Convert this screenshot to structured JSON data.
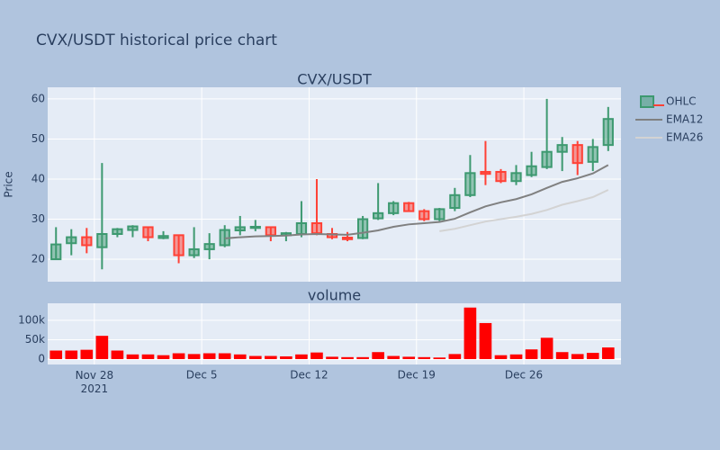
{
  "title": "CVX/USDT historical price chart",
  "chart_data": [
    {
      "type": "candlestick",
      "subtitle": "CVX/USDT",
      "ylabel": "Price",
      "x": [
        "2021-11-25",
        "2021-11-26",
        "2021-11-27",
        "2021-11-28",
        "2021-11-29",
        "2021-11-30",
        "2021-12-01",
        "2021-12-02",
        "2021-12-03",
        "2021-12-04",
        "2021-12-05",
        "2021-12-06",
        "2021-12-07",
        "2021-12-08",
        "2021-12-09",
        "2021-12-10",
        "2021-12-11",
        "2021-12-12",
        "2021-12-13",
        "2021-12-14",
        "2021-12-15",
        "2021-12-16",
        "2021-12-17",
        "2021-12-18",
        "2021-12-19",
        "2021-12-20",
        "2021-12-21",
        "2021-12-22",
        "2021-12-23",
        "2021-12-24",
        "2021-12-25",
        "2021-12-26",
        "2021-12-27",
        "2021-12-28",
        "2021-12-29",
        "2021-12-30",
        "2021-12-31"
      ],
      "series": [
        {
          "name": "OHLC",
          "type": "candlestick",
          "increasing_color": "#3d9970",
          "decreasing_color": "#ff4136",
          "open": [
            20,
            24,
            25.5,
            23,
            26.3,
            27.3,
            28,
            25.3,
            26,
            21,
            22.5,
            23.5,
            27.2,
            27.8,
            28,
            26,
            26.3,
            29,
            26.3,
            25.4,
            25.3,
            30.2,
            31.5,
            34,
            32,
            30,
            32.8,
            36,
            41.8,
            41.8,
            39.5,
            41,
            43,
            46.8,
            48.5,
            44.3,
            48.5
          ],
          "high": [
            28,
            27.5,
            27.8,
            44,
            27.8,
            28.5,
            28.2,
            27,
            26,
            28,
            26.5,
            28.5,
            30.8,
            29.8,
            28.2,
            26.8,
            34.5,
            40,
            27.8,
            26.8,
            30.8,
            39,
            34.5,
            34.3,
            32.5,
            32.8,
            37.8,
            46,
            49.5,
            42.5,
            43.5,
            46.8,
            60,
            50.5,
            49.5,
            50,
            58
          ],
          "low": [
            20,
            21,
            21.5,
            17.5,
            25.5,
            25.5,
            24.5,
            25,
            19,
            20.3,
            20,
            23,
            26,
            27,
            24.5,
            24.5,
            25.5,
            26,
            25,
            24.5,
            25,
            29.8,
            31,
            31.8,
            29.5,
            29.5,
            32,
            35.5,
            38.5,
            39,
            38.5,
            40.5,
            42.5,
            42,
            41,
            42,
            47
          ],
          "close": [
            23.7,
            25.5,
            23.5,
            26.3,
            27.5,
            28.2,
            25.5,
            25.8,
            21,
            22.5,
            23.8,
            27.3,
            28,
            28.1,
            26,
            26.5,
            29,
            26.5,
            25.5,
            25,
            30,
            31.5,
            34,
            32,
            30,
            32.5,
            36,
            41.5,
            41.3,
            39.5,
            41.5,
            43.2,
            46.8,
            48.5,
            44,
            48,
            55
          ]
        },
        {
          "name": "EMA12",
          "type": "line",
          "color": "#808080",
          "values": [
            null,
            null,
            null,
            null,
            null,
            null,
            null,
            null,
            null,
            null,
            null,
            25.2,
            25.5,
            25.7,
            25.8,
            25.9,
            26.2,
            26.3,
            26.2,
            26.1,
            26.6,
            27.2,
            28.1,
            28.7,
            29.0,
            29.3,
            30.1,
            31.7,
            33.2,
            34.2,
            35.0,
            36.2,
            37.8,
            39.3,
            40.2,
            41.4,
            43.5
          ]
        },
        {
          "name": "EMA26",
          "type": "line",
          "color": "#d3d3d3",
          "values": [
            null,
            null,
            null,
            null,
            null,
            null,
            null,
            null,
            null,
            null,
            null,
            null,
            null,
            null,
            null,
            null,
            null,
            null,
            null,
            null,
            null,
            null,
            null,
            null,
            null,
            27.0,
            27.6,
            28.5,
            29.4,
            30.0,
            30.6,
            31.3,
            32.3,
            33.6,
            34.5,
            35.5,
            37.3
          ]
        }
      ],
      "xlim": [
        "2021-11-24T23:00:00Z",
        "2022-01-01T08:00:00Z"
      ],
      "xticks": [
        "2021-11-28",
        "2021-12-05",
        "2021-12-12",
        "2021-12-19",
        "2021-12-26"
      ],
      "ylim": [
        14.4,
        62.9
      ],
      "yticks": [
        20,
        30,
        40,
        50,
        60
      ],
      "grid": true,
      "legend": "right"
    },
    {
      "type": "bar",
      "subtitle": "volume",
      "color": "#ff0000",
      "x": [
        "2021-11-25",
        "2021-11-26",
        "2021-11-27",
        "2021-11-28",
        "2021-11-29",
        "2021-11-30",
        "2021-12-01",
        "2021-12-02",
        "2021-12-03",
        "2021-12-04",
        "2021-12-05",
        "2021-12-06",
        "2021-12-07",
        "2021-12-08",
        "2021-12-09",
        "2021-12-10",
        "2021-12-11",
        "2021-12-12",
        "2021-12-13",
        "2021-12-14",
        "2021-12-15",
        "2021-12-16",
        "2021-12-17",
        "2021-12-18",
        "2021-12-19",
        "2021-12-20",
        "2021-12-21",
        "2021-12-22",
        "2021-12-23",
        "2021-12-24",
        "2021-12-25",
        "2021-12-26",
        "2021-12-27",
        "2021-12-28",
        "2021-12-29",
        "2021-12-30",
        "2021-12-31"
      ],
      "values": [
        22000,
        22000,
        24000,
        60000,
        22000,
        12000,
        12000,
        10000,
        15000,
        13000,
        15000,
        15000,
        12000,
        8000,
        8000,
        7000,
        12000,
        17000,
        6000,
        5000,
        5000,
        18000,
        8000,
        6000,
        5000,
        4000,
        13000,
        133000,
        93000,
        10000,
        12000,
        25000,
        55000,
        18000,
        13000,
        16000,
        30000
      ],
      "xlim": [
        "2021-11-24T23:00:00Z",
        "2022-01-01T08:00:00Z"
      ],
      "xticks": [
        {
          "value": "2021-11-28",
          "label": "Nov 28\n2021"
        },
        {
          "value": "2021-12-05",
          "label": "Dec 5"
        },
        {
          "value": "2021-12-12",
          "label": "Dec 12"
        },
        {
          "value": "2021-12-19",
          "label": "Dec 19"
        },
        {
          "value": "2021-12-26",
          "label": "Dec 26"
        }
      ],
      "ylim": [
        -14000,
        144000
      ],
      "yticks": [
        0,
        {
          "value": 50000,
          "label": "50k"
        },
        {
          "value": 100000,
          "label": "100k"
        }
      ],
      "grid": true
    }
  ]
}
